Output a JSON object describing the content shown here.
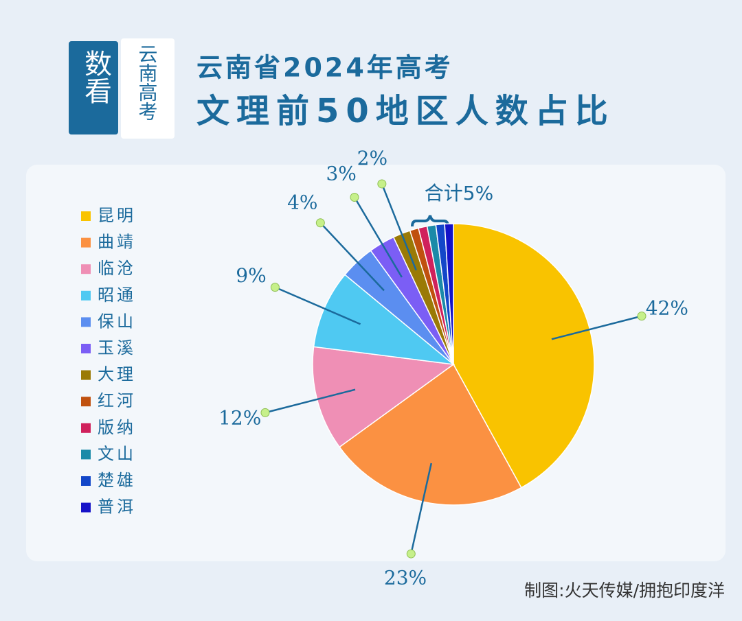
{
  "header": {
    "badge": "数看",
    "tag": "云南高考",
    "title_line1": "云南省2024年高考",
    "title_line2": "文理前50地区人数占比"
  },
  "chart_data": {
    "type": "pie",
    "categories": [
      "昆明",
      "曲靖",
      "临沧",
      "昭通",
      "保山",
      "玉溪",
      "大理",
      "红河",
      "版纳",
      "文山",
      "楚雄",
      "普洱"
    ],
    "values": [
      42,
      23,
      12,
      9,
      4,
      3,
      2,
      1,
      1,
      1,
      1,
      1
    ],
    "value_labels": [
      "42%",
      "23%",
      "12%",
      "9%",
      "4%",
      "3%",
      "2%",
      null,
      null,
      null,
      null,
      null
    ],
    "colors": [
      "#f9c300",
      "#fb9142",
      "#ef8fb5",
      "#4fc9f2",
      "#5b8ef0",
      "#7b5ef5",
      "#9a7a06",
      "#c0510f",
      "#d0215c",
      "#1b8aa8",
      "#1347c9",
      "#1512c8"
    ],
    "annotation": "合计5%",
    "legend": "left"
  },
  "footer": {
    "credit": "制图:火天传媒/拥抱印度洋"
  }
}
